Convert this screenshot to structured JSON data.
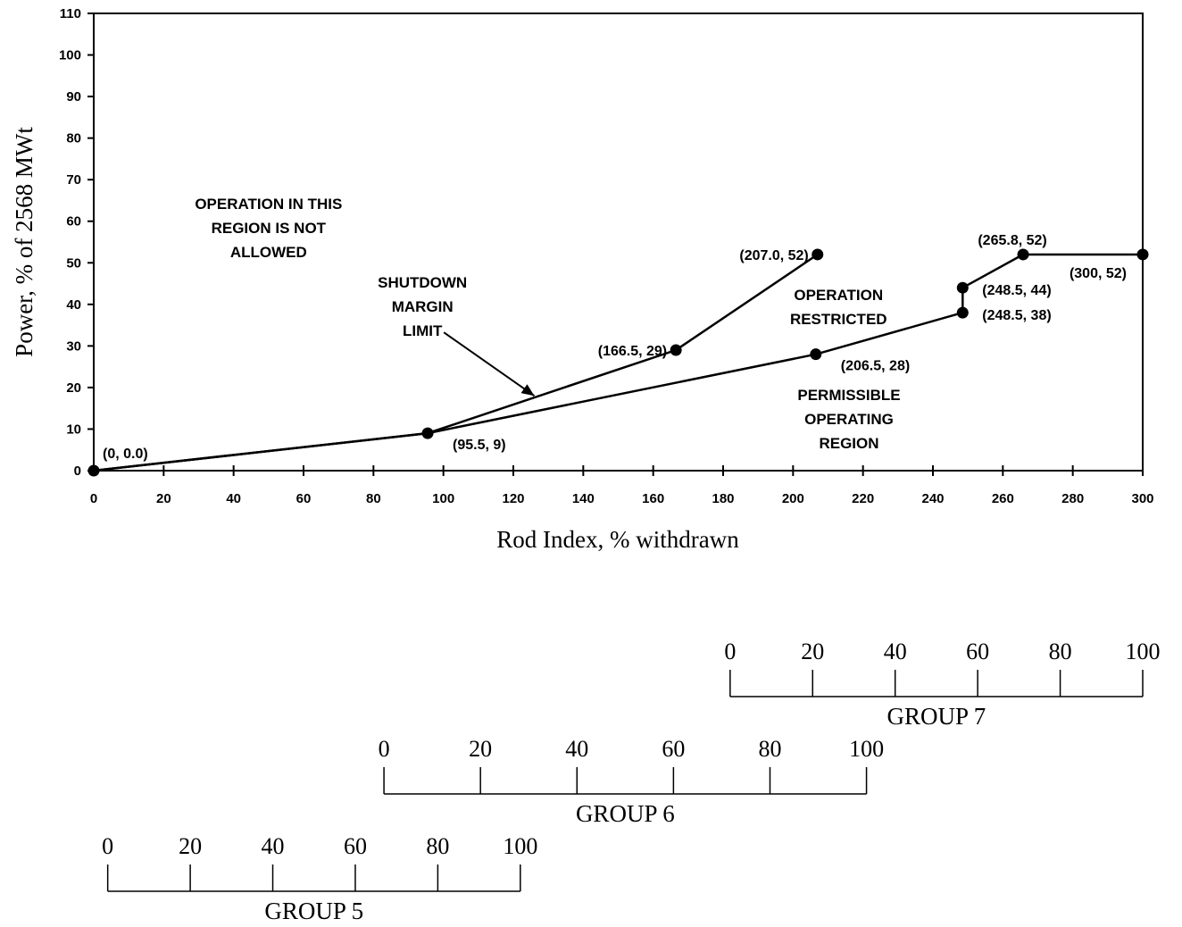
{
  "chart_data": {
    "type": "line",
    "xlabel": "Rod Index, % withdrawn",
    "ylabel": "Power, % of 2568 MWt",
    "xlim": [
      0,
      300
    ],
    "ylim": [
      0,
      110
    ],
    "xticks": [
      0,
      20,
      40,
      60,
      80,
      100,
      120,
      140,
      160,
      180,
      200,
      220,
      240,
      260,
      280,
      300
    ],
    "yticks": [
      0,
      10,
      20,
      30,
      40,
      50,
      60,
      70,
      80,
      90,
      100,
      110
    ],
    "grid": false,
    "series": [
      {
        "name": "SHUTDOWN MARGIN LIMIT",
        "points": [
          [
            0,
            0
          ],
          [
            95.5,
            9
          ],
          [
            166.5,
            29
          ],
          [
            207.0,
            52
          ]
        ]
      },
      {
        "name": "",
        "points": [
          [
            0,
            0
          ],
          [
            95.5,
            9
          ],
          [
            206.5,
            28
          ],
          [
            248.5,
            38
          ],
          [
            248.5,
            44
          ],
          [
            265.8,
            52
          ],
          [
            300,
            52
          ]
        ]
      }
    ],
    "point_labels": [
      {
        "x": 0,
        "y": 0,
        "text": "(0, 0.0)",
        "pos": "above-right"
      },
      {
        "x": 95.5,
        "y": 9,
        "text": "(95.5, 9)",
        "pos": "below-right"
      },
      {
        "x": 166.5,
        "y": 29,
        "text": "(166.5, 29)",
        "pos": "left"
      },
      {
        "x": 207.0,
        "y": 52,
        "text": "(207.0, 52)",
        "pos": "left"
      },
      {
        "x": 206.5,
        "y": 28,
        "text": "(206.5, 28)",
        "pos": "below-right"
      },
      {
        "x": 248.5,
        "y": 38,
        "text": "(248.5, 38)",
        "pos": "right"
      },
      {
        "x": 248.5,
        "y": 44,
        "text": "(248.5, 44)",
        "pos": "right"
      },
      {
        "x": 265.8,
        "y": 52,
        "text": "(265.8, 52)",
        "pos": "above"
      },
      {
        "x": 300,
        "y": 52,
        "text": "(300, 52)",
        "pos": "below-left"
      }
    ],
    "annotations": [
      {
        "lines": [
          "OPERATION IN THIS",
          "REGION IS NOT",
          "ALLOWED"
        ],
        "x": 50,
        "y": 63
      },
      {
        "lines": [
          "SHUTDOWN",
          "MARGIN",
          "LIMIT"
        ],
        "x": 94,
        "y": 44,
        "arrow_to": [
          126,
          18
        ]
      },
      {
        "lines": [
          "OPERATION",
          "RESTRICTED"
        ],
        "x": 213,
        "y": 41
      },
      {
        "lines": [
          "PERMISSIBLE",
          "OPERATING",
          "REGION"
        ],
        "x": 216,
        "y": 17
      }
    ],
    "group_scales": [
      {
        "name": "GROUP 7",
        "start_index": 182,
        "end_index": 300,
        "ticks": [
          0,
          20,
          40,
          60,
          80,
          100
        ]
      },
      {
        "name": "GROUP 6",
        "start_index": 83,
        "end_index": 221,
        "ticks": [
          0,
          20,
          40,
          60,
          80,
          100
        ]
      },
      {
        "name": "GROUP 5",
        "start_index": 4,
        "end_index": 122,
        "ticks": [
          0,
          20,
          40,
          60,
          80,
          100
        ]
      }
    ]
  }
}
